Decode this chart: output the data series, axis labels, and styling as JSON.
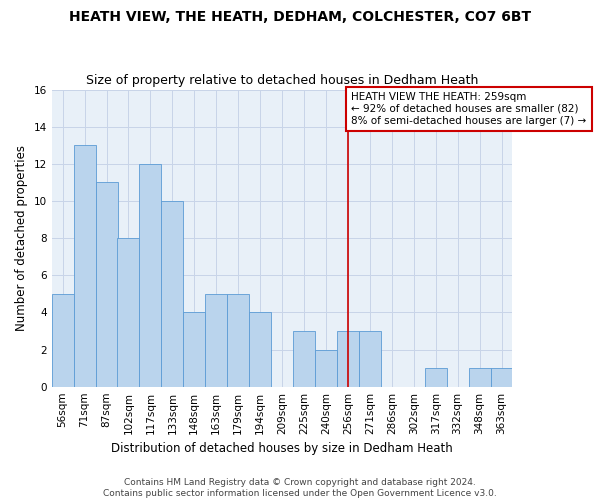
{
  "title": "HEATH VIEW, THE HEATH, DEDHAM, COLCHESTER, CO7 6BT",
  "subtitle": "Size of property relative to detached houses in Dedham Heath",
  "xlabel": "Distribution of detached houses by size in Dedham Heath",
  "ylabel": "Number of detached properties",
  "categories": [
    "56sqm",
    "71sqm",
    "87sqm",
    "102sqm",
    "117sqm",
    "133sqm",
    "148sqm",
    "163sqm",
    "179sqm",
    "194sqm",
    "209sqm",
    "225sqm",
    "240sqm",
    "256sqm",
    "271sqm",
    "286sqm",
    "302sqm",
    "317sqm",
    "332sqm",
    "348sqm",
    "363sqm"
  ],
  "values": [
    5,
    13,
    11,
    8,
    12,
    10,
    4,
    5,
    5,
    4,
    0,
    3,
    2,
    3,
    3,
    0,
    0,
    1,
    0,
    1,
    1
  ],
  "bar_color": "#bad4ed",
  "bar_edge_color": "#5b9bd5",
  "highlight_index": 13,
  "highlight_line_color": "#cc0000",
  "annotation_line1": "HEATH VIEW THE HEATH: 259sqm",
  "annotation_line2": "← 92% of detached houses are smaller (82)",
  "annotation_line3": "8% of semi-detached houses are larger (7) →",
  "annotation_box_color": "#ffffff",
  "annotation_box_edge_color": "#cc0000",
  "ylim": [
    0,
    16
  ],
  "yticks": [
    0,
    2,
    4,
    6,
    8,
    10,
    12,
    14,
    16
  ],
  "footer_text": "Contains HM Land Registry data © Crown copyright and database right 2024.\nContains public sector information licensed under the Open Government Licence v3.0.",
  "background_color": "#ffffff",
  "grid_color": "#c8d4e8",
  "title_fontsize": 10,
  "subtitle_fontsize": 9,
  "axis_label_fontsize": 8.5,
  "tick_fontsize": 7.5,
  "annotation_fontsize": 7.5,
  "footer_fontsize": 6.5
}
